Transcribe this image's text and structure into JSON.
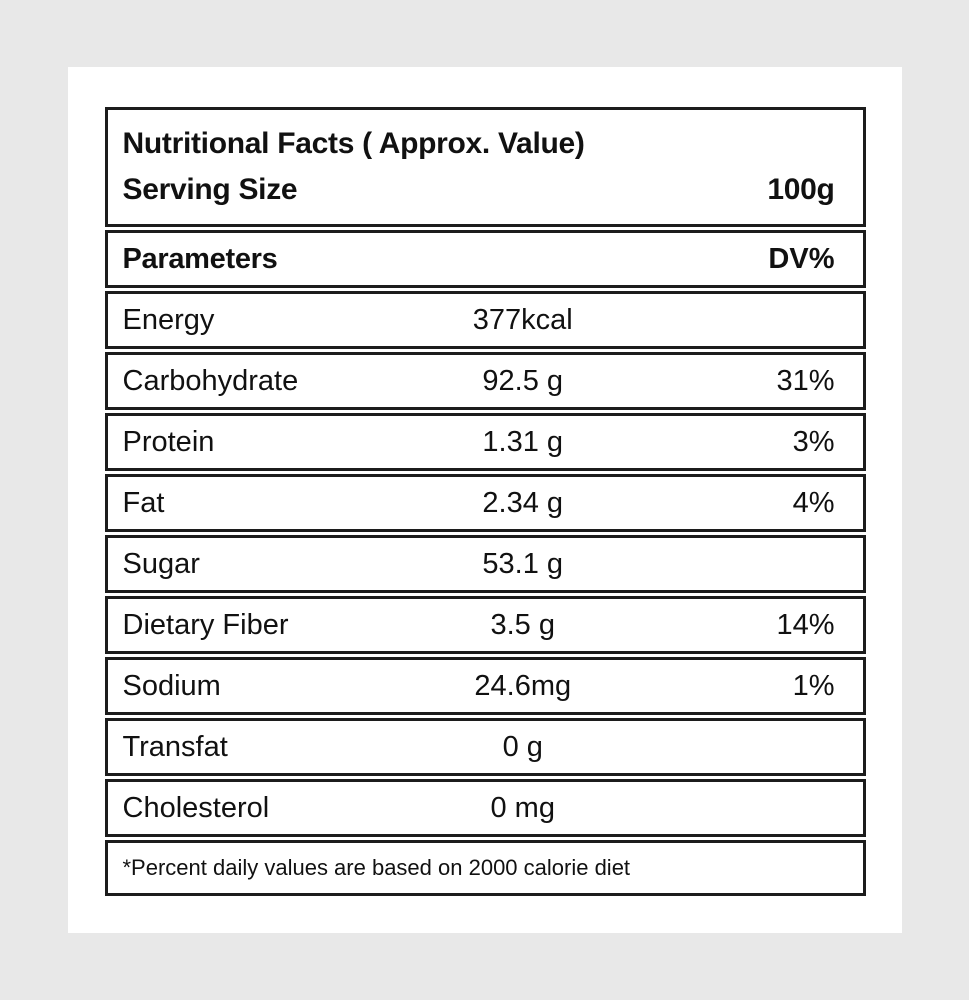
{
  "page": {
    "background_color": "#e8e8e8",
    "card_color": "#ffffff",
    "border_color": "#1c1c1c",
    "text_color": "#111111"
  },
  "header": {
    "title": "Nutritional Facts ( Approx. Value)",
    "serving_label": "Serving Size",
    "serving_value": "100g"
  },
  "columns": {
    "parameter": "Parameters",
    "dv": "DV%"
  },
  "rows": [
    {
      "label": "Energy",
      "value": "377kcal",
      "dv": ""
    },
    {
      "label": "Carbohydrate",
      "value": "92.5 g",
      "dv": "31%"
    },
    {
      "label": "Protein",
      "value": "1.31 g",
      "dv": "3%"
    },
    {
      "label": "Fat",
      "value": "2.34 g",
      "dv": "4%"
    },
    {
      "label": "Sugar",
      "value": "53.1 g",
      "dv": ""
    },
    {
      "label": "Dietary Fiber",
      "value": "3.5 g",
      "dv": "14%"
    },
    {
      "label": "Sodium",
      "value": "24.6mg",
      "dv": "1%"
    },
    {
      "label": "Transfat",
      "value": "0 g",
      "dv": ""
    },
    {
      "label": "Cholesterol",
      "value": "0 mg",
      "dv": ""
    }
  ],
  "footnote": "*Percent daily values are based on 2000 calorie diet"
}
